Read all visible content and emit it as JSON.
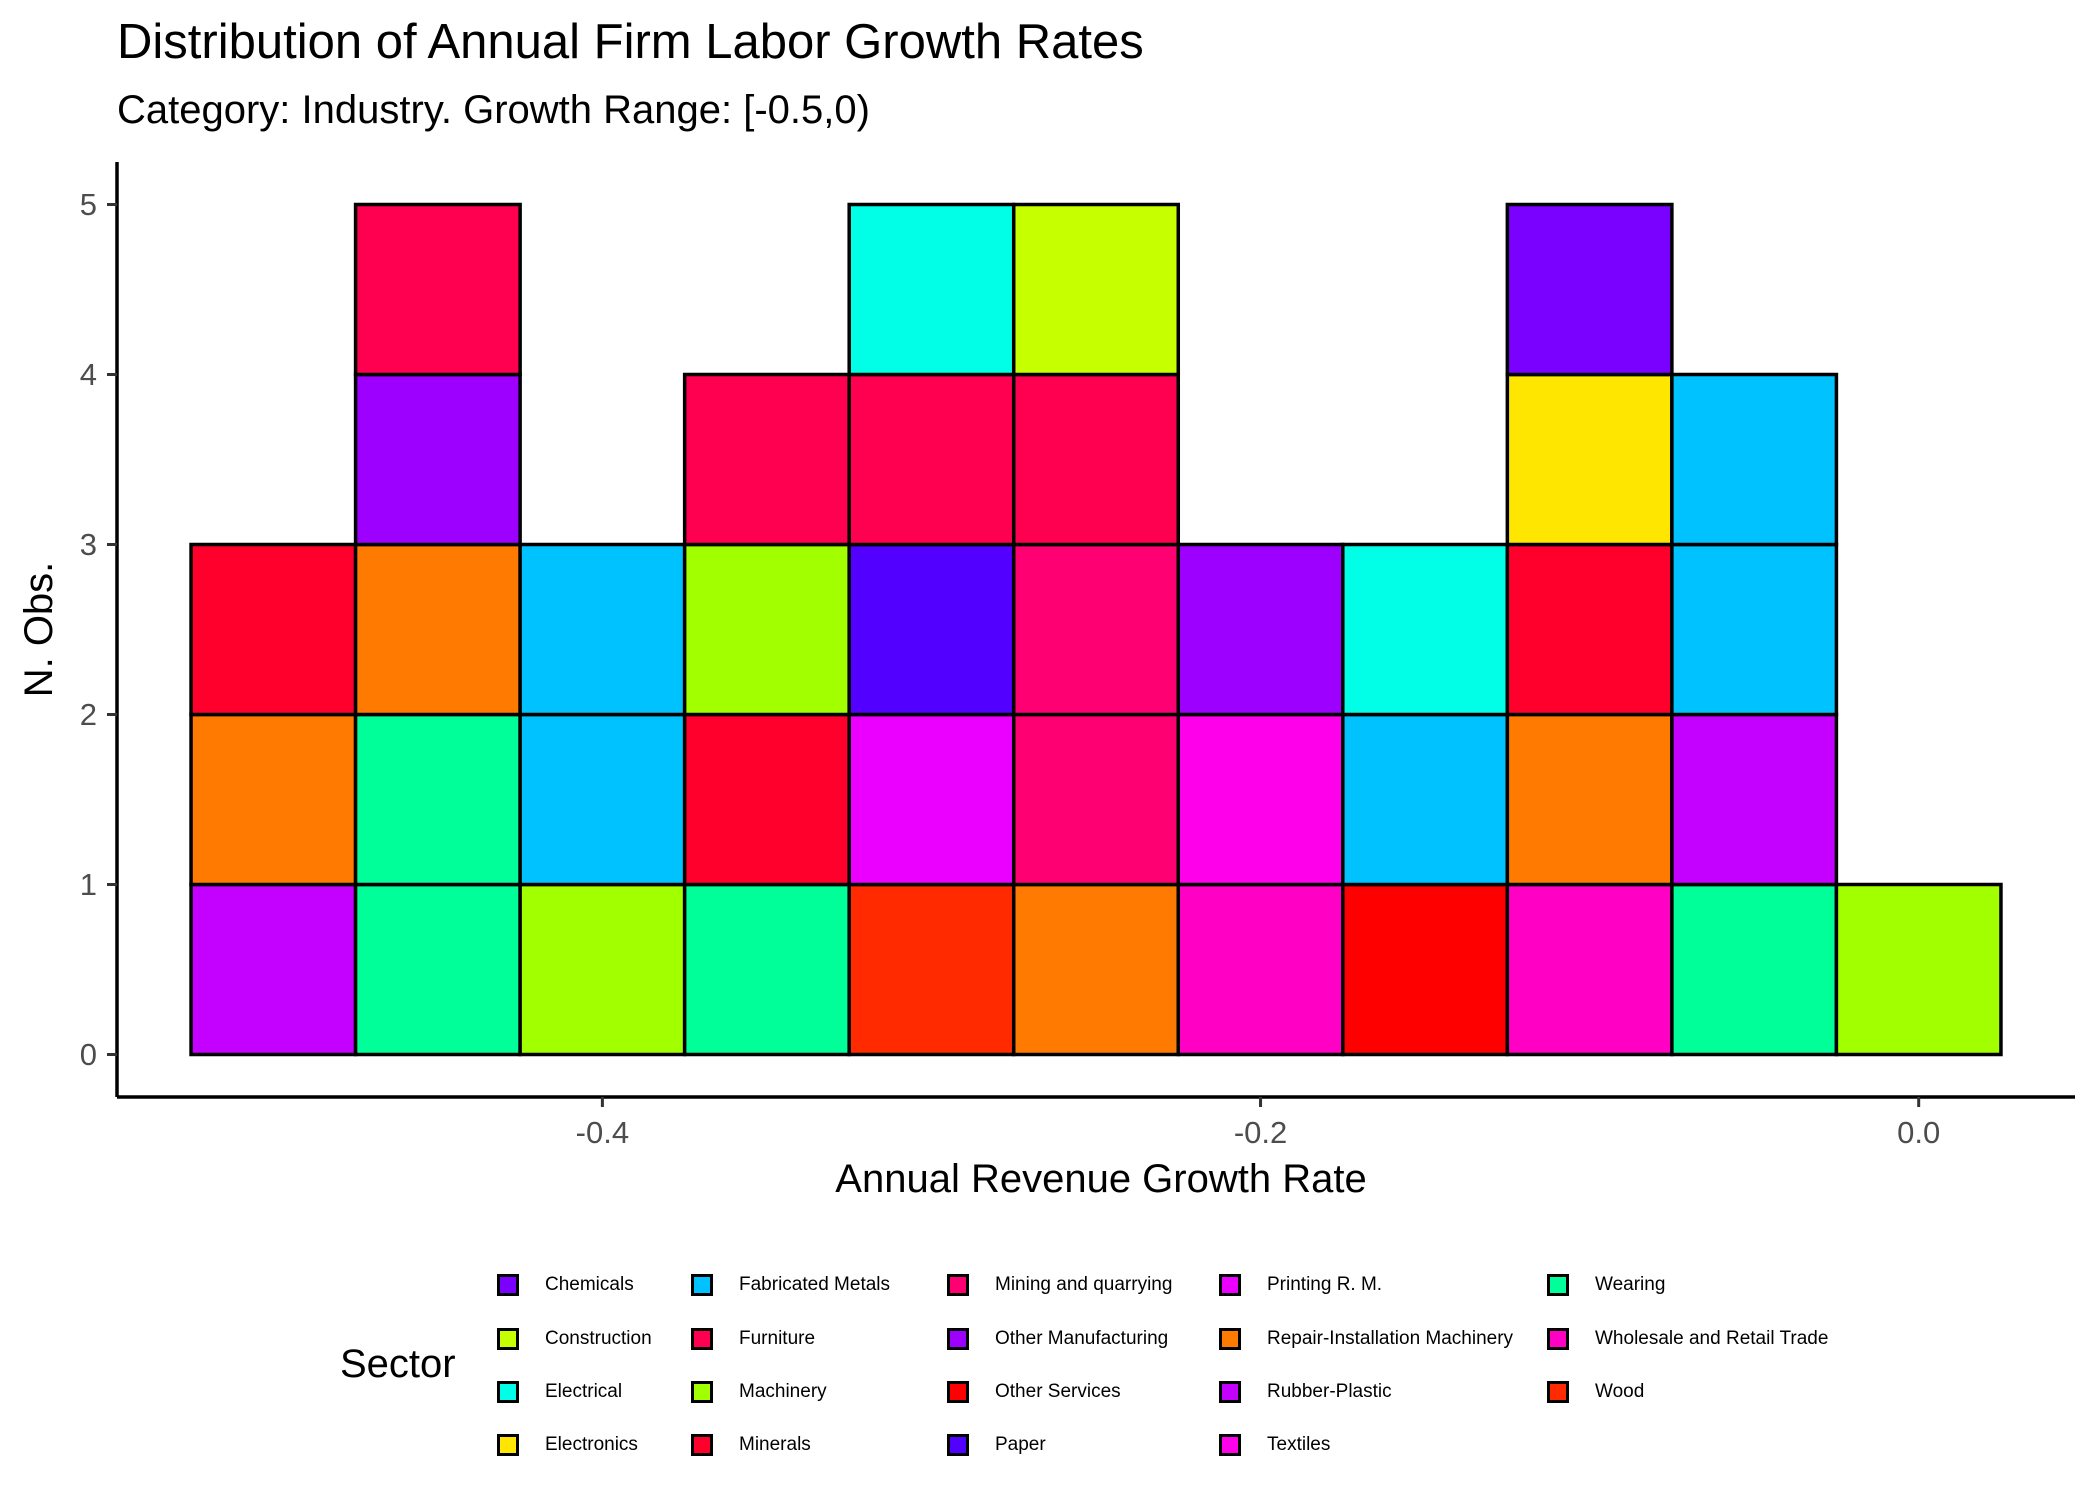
{
  "chart_data": {
    "type": "bar",
    "subtype": "stacked-histogram",
    "title": "Distribution of Annual Firm Labor Growth Rates",
    "subtitle": "Category: Industry. Growth Range: [-0.5,0)",
    "xlabel": "Annual Revenue Growth Rate",
    "ylabel": "N. Obs.",
    "xlim": [
      -0.5475,
      0.0475
    ],
    "ylim": [
      -0.25,
      5.25
    ],
    "xticks": [
      -0.4,
      -0.2,
      0.0
    ],
    "xtick_labels": [
      "-0.4",
      "-0.2",
      "0.0"
    ],
    "yticks": [
      0,
      1,
      2,
      3,
      4,
      5
    ],
    "ytick_labels": [
      "0",
      "1",
      "2",
      "3",
      "4",
      "5"
    ],
    "bin_width": 0.05,
    "grid": false,
    "legend_title": "Sector",
    "legend_position": "bottom",
    "sectors": [
      {
        "name": "Chemicals",
        "color": "#7A00FF"
      },
      {
        "name": "Construction",
        "color": "#C6FF00"
      },
      {
        "name": "Electrical",
        "color": "#00FFE6"
      },
      {
        "name": "Electronics",
        "color": "#FFE600"
      },
      {
        "name": "Fabricated Metals",
        "color": "#00C2FF"
      },
      {
        "name": "Furniture",
        "color": "#FF0050"
      },
      {
        "name": "Machinery",
        "color": "#A2FF00"
      },
      {
        "name": "Minerals",
        "color": "#FF002C"
      },
      {
        "name": "Mining and quarrying",
        "color": "#FF0073"
      },
      {
        "name": "Other Manufacturing",
        "color": "#9E00FF"
      },
      {
        "name": "Other Services",
        "color": "#FF0000"
      },
      {
        "name": "Paper",
        "color": "#5200FF"
      },
      {
        "name": "Printing R. M.",
        "color": "#EB00FF"
      },
      {
        "name": "Repair-Installation Machinery",
        "color": "#FF7A00"
      },
      {
        "name": "Rubber-Plastic",
        "color": "#C400FF"
      },
      {
        "name": "Textiles",
        "color": "#FF00EB"
      },
      {
        "name": "Wearing",
        "color": "#00FF99"
      },
      {
        "name": "Wholesale and Retail Trade",
        "color": "#FF00C4"
      },
      {
        "name": "Wood",
        "color": "#FF2A00"
      }
    ],
    "bins": [
      {
        "x_start": -0.525,
        "x_end": -0.475,
        "stack": [
          "Rubber-Plastic",
          "Repair-Installation Machinery",
          "Minerals"
        ]
      },
      {
        "x_start": -0.475,
        "x_end": -0.425,
        "stack": [
          "Wearing",
          "Wearing",
          "Repair-Installation Machinery",
          "Other Manufacturing",
          "Furniture"
        ]
      },
      {
        "x_start": -0.425,
        "x_end": -0.375,
        "stack": [
          "Machinery",
          "Fabricated Metals",
          "Fabricated Metals"
        ]
      },
      {
        "x_start": -0.375,
        "x_end": -0.325,
        "stack": [
          "Wearing",
          "Minerals",
          "Machinery",
          "Furniture"
        ]
      },
      {
        "x_start": -0.325,
        "x_end": -0.275,
        "stack": [
          "Wood",
          "Printing R. M.",
          "Paper",
          "Furniture",
          "Electrical"
        ]
      },
      {
        "x_start": -0.275,
        "x_end": -0.225,
        "stack": [
          "Repair-Installation Machinery",
          "Mining and quarrying",
          "Mining and quarrying",
          "Furniture",
          "Construction"
        ]
      },
      {
        "x_start": -0.225,
        "x_end": -0.175,
        "stack": [
          "Wholesale and Retail Trade",
          "Textiles",
          "Other Manufacturing"
        ]
      },
      {
        "x_start": -0.175,
        "x_end": -0.125,
        "stack": [
          "Other Services",
          "Fabricated Metals",
          "Electrical"
        ]
      },
      {
        "x_start": -0.125,
        "x_end": -0.075,
        "stack": [
          "Wholesale and Retail Trade",
          "Repair-Installation Machinery",
          "Minerals",
          "Electronics",
          "Chemicals"
        ]
      },
      {
        "x_start": -0.075,
        "x_end": -0.025,
        "stack": [
          "Wearing",
          "Rubber-Plastic",
          "Fabricated Metals",
          "Fabricated Metals"
        ]
      },
      {
        "x_start": -0.025,
        "x_end": 0.025,
        "stack": [
          "Machinery"
        ]
      }
    ]
  }
}
